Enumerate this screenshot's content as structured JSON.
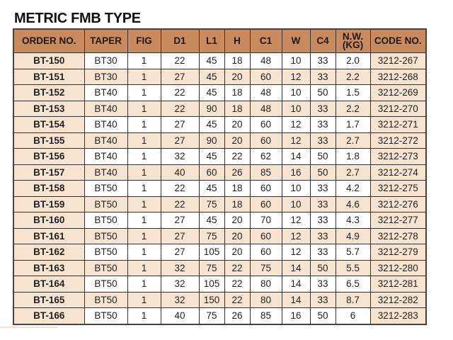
{
  "title": "METRIC FMB TYPE",
  "columns": [
    "ORDER NO.",
    "TAPER",
    "FIG",
    "D1",
    "L1",
    "H",
    "C1",
    "W",
    "C4",
    "N.W.\n(KG)",
    "CODE NO."
  ],
  "colors": {
    "header": "#c98a5e",
    "stripe": "#f7e4d0",
    "border": "#333333"
  },
  "rows": [
    [
      "BT-150",
      "BT30",
      "1",
      "22",
      "45",
      "18",
      "48",
      "10",
      "33",
      "2.0",
      "3212-267"
    ],
    [
      "BT-151",
      "BT30",
      "1",
      "27",
      "45",
      "20",
      "60",
      "12",
      "33",
      "2.2",
      "3212-268"
    ],
    [
      "BT-152",
      "BT40",
      "1",
      "22",
      "45",
      "18",
      "48",
      "10",
      "50",
      "1.5",
      "3212-269"
    ],
    [
      "BT-153",
      "BT40",
      "1",
      "22",
      "90",
      "18",
      "48",
      "10",
      "33",
      "2.2",
      "3212-270"
    ],
    [
      "BT-154",
      "BT40",
      "1",
      "27",
      "45",
      "20",
      "60",
      "12",
      "33",
      "1.7",
      "3212-271"
    ],
    [
      "BT-155",
      "BT40",
      "1",
      "27",
      "90",
      "20",
      "60",
      "12",
      "33",
      "2.7",
      "3212-272"
    ],
    [
      "BT-156",
      "BT40",
      "1",
      "32",
      "45",
      "22",
      "62",
      "14",
      "50",
      "1.8",
      "3212-273"
    ],
    [
      "BT-157",
      "BT40",
      "1",
      "40",
      "60",
      "26",
      "85",
      "16",
      "50",
      "2.7",
      "3212-274"
    ],
    [
      "BT-158",
      "BT50",
      "1",
      "22",
      "45",
      "18",
      "60",
      "10",
      "33",
      "4.2",
      "3212-275"
    ],
    [
      "BT-159",
      "BT50",
      "1",
      "22",
      "75",
      "18",
      "60",
      "10",
      "33",
      "4.6",
      "3212-276"
    ],
    [
      "BT-160",
      "BT50",
      "1",
      "27",
      "45",
      "20",
      "70",
      "12",
      "33",
      "4.3",
      "3212-277"
    ],
    [
      "BT-161",
      "BT50",
      "1",
      "27",
      "75",
      "20",
      "60",
      "12",
      "33",
      "4.9",
      "3212-278"
    ],
    [
      "BT-162",
      "BT50",
      "1",
      "27",
      "105",
      "20",
      "60",
      "12",
      "33",
      "5.7",
      "3212-279"
    ],
    [
      "BT-163",
      "BT50",
      "1",
      "32",
      "75",
      "22",
      "75",
      "14",
      "50",
      "5.5",
      "3212-280"
    ],
    [
      "BT-164",
      "BT50",
      "1",
      "32",
      "105",
      "22",
      "80",
      "14",
      "33",
      "6.5",
      "3212-281"
    ],
    [
      "BT-165",
      "BT50",
      "1",
      "32",
      "150",
      "22",
      "80",
      "14",
      "33",
      "8.7",
      "3212-282"
    ],
    [
      "BT-166",
      "BT50",
      "1",
      "40",
      "75",
      "26",
      "85",
      "16",
      "50",
      "6",
      "3212-283"
    ]
  ]
}
